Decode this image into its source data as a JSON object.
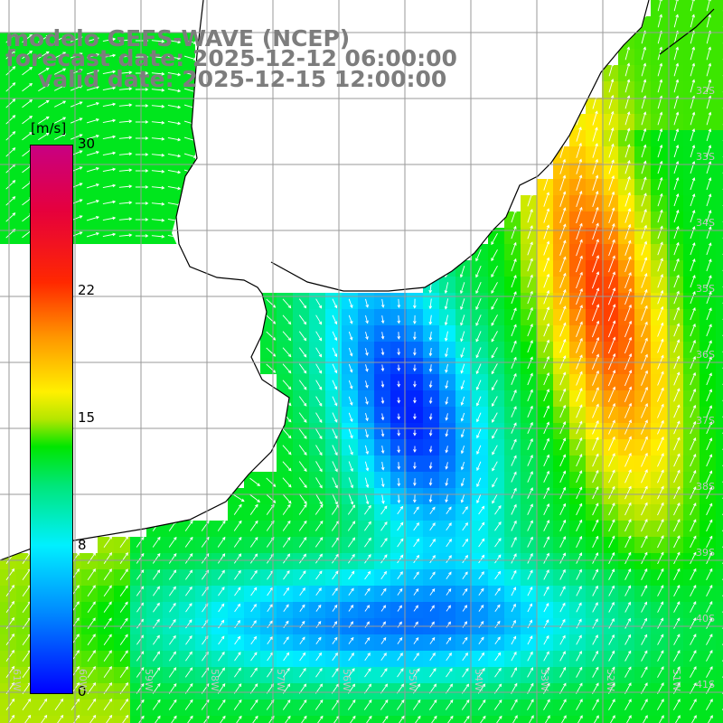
{
  "title": {
    "line1": "modelo GEFS-WAVE (NCEP)",
    "line2": "forecast date: 2025-12-12 06:00:00",
    "line3": "valid date: 2025-12-15 12:00:00"
  },
  "colorbar": {
    "unit": "[m/s]",
    "min": 0,
    "max": 30,
    "ticks": [
      {
        "value": 30,
        "label": "30"
      },
      {
        "value": 22,
        "label": "22"
      },
      {
        "value": 15,
        "label": "15"
      },
      {
        "value": 8,
        "label": "8"
      },
      {
        "value": 0,
        "label": "0"
      }
    ]
  },
  "map": {
    "variable": "wind speed",
    "lat_labels": [
      "32S",
      "33S",
      "34S",
      "35S",
      "36S",
      "37S",
      "38S",
      "39S",
      "40S",
      "41S"
    ],
    "lon_labels": [
      "61W",
      "60W",
      "59W",
      "58W",
      "57W",
      "56W",
      "55W",
      "54W",
      "53W",
      "52W",
      "51W"
    ],
    "colors": {
      "grid": "#9a9a9a",
      "coast": "#000000",
      "land": "#ffffff",
      "arrows": "#ffffff",
      "title": "#7d7d7d"
    }
  }
}
